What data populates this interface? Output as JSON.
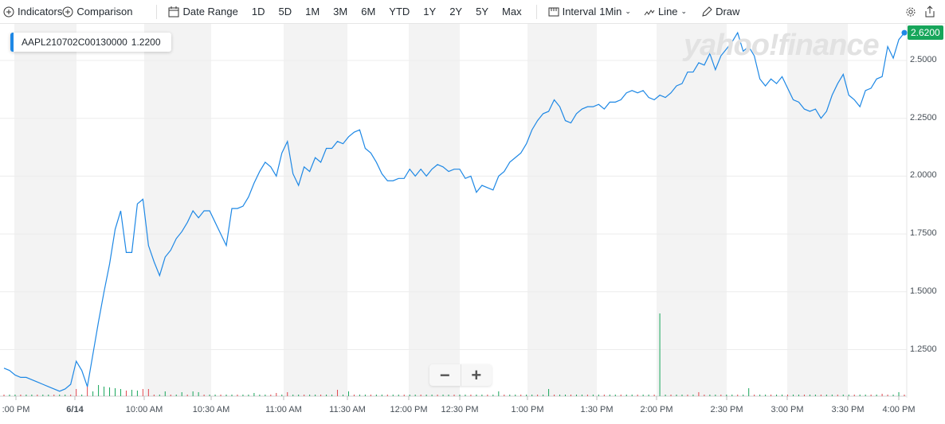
{
  "toolbar": {
    "indicators": "Indicators",
    "comparison": "Comparison",
    "date_range": "Date Range",
    "ranges": [
      "1D",
      "5D",
      "1M",
      "3M",
      "6M",
      "YTD",
      "1Y",
      "2Y",
      "5Y",
      "Max"
    ],
    "interval_label": "Interval",
    "interval_value": "1Min",
    "chart_type": "Line",
    "draw": "Draw"
  },
  "legend": {
    "symbol": "AAPL210702C00130000",
    "value": "1.2200"
  },
  "watermark": "yahoo!finance",
  "last_price": "2.6200",
  "zoom": {
    "minus": "−",
    "plus": "+"
  },
  "colors": {
    "line": "#1e88e5",
    "up": "#17a65b",
    "down": "#e0464e",
    "band": "#f3f3f3",
    "last": "#17a65b"
  },
  "chart_data": {
    "type": "line",
    "title": "AAPL210702C00130000",
    "ylim": [
      1.03,
      2.66
    ],
    "y_ticks": [
      "2.5000",
      "2.2500",
      "2.0000",
      "1.7500",
      "1.5000",
      "1.2500"
    ],
    "y_tick_values": [
      2.5,
      2.25,
      2.0,
      1.75,
      1.5,
      1.25
    ],
    "x_ticks": [
      ":00 PM",
      "6/14",
      "10:00 AM",
      "10:30 AM",
      "11:00 AM",
      "11:30 AM",
      "12:00 PM",
      "12:30 PM",
      "1:00 PM",
      "1:30 PM",
      "2:00 PM",
      "2:30 PM",
      "3:00 PM",
      "3:30 PM",
      "4:00 PM"
    ],
    "values": [
      1.17,
      1.16,
      1.14,
      1.13,
      1.13,
      1.12,
      1.11,
      1.1,
      1.09,
      1.08,
      1.07,
      1.08,
      1.1,
      1.2,
      1.16,
      1.09,
      1.23,
      1.37,
      1.5,
      1.62,
      1.77,
      1.85,
      1.67,
      1.67,
      1.88,
      1.9,
      1.7,
      1.63,
      1.57,
      1.65,
      1.68,
      1.73,
      1.76,
      1.8,
      1.85,
      1.82,
      1.85,
      1.85,
      1.8,
      1.75,
      1.7,
      1.86,
      1.86,
      1.87,
      1.91,
      1.97,
      2.02,
      2.06,
      2.04,
      2.0,
      2.1,
      2.15,
      2.01,
      1.96,
      2.04,
      2.02,
      2.08,
      2.06,
      2.12,
      2.12,
      2.15,
      2.14,
      2.17,
      2.19,
      2.2,
      2.12,
      2.1,
      2.06,
      2.01,
      1.98,
      1.98,
      1.99,
      1.99,
      2.03,
      2.0,
      2.03,
      2.0,
      2.03,
      2.05,
      2.04,
      2.02,
      2.03,
      2.03,
      1.99,
      2.0,
      1.93,
      1.96,
      1.95,
      1.94,
      2.0,
      2.02,
      2.06,
      2.08,
      2.1,
      2.14,
      2.2,
      2.24,
      2.27,
      2.28,
      2.33,
      2.3,
      2.24,
      2.23,
      2.27,
      2.29,
      2.3,
      2.3,
      2.31,
      2.29,
      2.32,
      2.32,
      2.33,
      2.36,
      2.37,
      2.36,
      2.37,
      2.34,
      2.33,
      2.35,
      2.34,
      2.36,
      2.39,
      2.4,
      2.45,
      2.45,
      2.49,
      2.48,
      2.53,
      2.46,
      2.52,
      2.55,
      2.58,
      2.62,
      2.54,
      2.56,
      2.52,
      2.42,
      2.39,
      2.42,
      2.4,
      2.43,
      2.38,
      2.33,
      2.32,
      2.29,
      2.28,
      2.29,
      2.25,
      2.28,
      2.35,
      2.4,
      2.44,
      2.35,
      2.33,
      2.3,
      2.37,
      2.38,
      2.42,
      2.43,
      2.56,
      2.51,
      2.59,
      2.62
    ],
    "volume_default": 2,
    "volume_spikes": [
      {
        "i": 13,
        "v": 9,
        "dir": "down"
      },
      {
        "i": 15,
        "v": 13,
        "dir": "down"
      },
      {
        "i": 16,
        "v": 6,
        "dir": "up"
      },
      {
        "i": 17,
        "v": 14,
        "dir": "up"
      },
      {
        "i": 18,
        "v": 12,
        "dir": "up"
      },
      {
        "i": 19,
        "v": 11,
        "dir": "up"
      },
      {
        "i": 20,
        "v": 10,
        "dir": "up"
      },
      {
        "i": 21,
        "v": 9,
        "dir": "up"
      },
      {
        "i": 22,
        "v": 7,
        "dir": "down"
      },
      {
        "i": 23,
        "v": 8,
        "dir": "up"
      },
      {
        "i": 24,
        "v": 7,
        "dir": "up"
      },
      {
        "i": 25,
        "v": 9,
        "dir": "down"
      },
      {
        "i": 26,
        "v": 9,
        "dir": "down"
      },
      {
        "i": 29,
        "v": 6,
        "dir": "up"
      },
      {
        "i": 32,
        "v": 5,
        "dir": "up"
      },
      {
        "i": 34,
        "v": 6,
        "dir": "up"
      },
      {
        "i": 35,
        "v": 5,
        "dir": "up"
      },
      {
        "i": 45,
        "v": 4,
        "dir": "up"
      },
      {
        "i": 49,
        "v": 4,
        "dir": "down"
      },
      {
        "i": 51,
        "v": 5,
        "dir": "down"
      },
      {
        "i": 60,
        "v": 8,
        "dir": "down"
      },
      {
        "i": 62,
        "v": 6,
        "dir": "up"
      },
      {
        "i": 89,
        "v": 6,
        "dir": "up"
      },
      {
        "i": 98,
        "v": 9,
        "dir": "up"
      },
      {
        "i": 118,
        "v": 104,
        "dir": "up"
      },
      {
        "i": 125,
        "v": 5,
        "dir": "down"
      },
      {
        "i": 134,
        "v": 10,
        "dir": "up"
      },
      {
        "i": 158,
        "v": 3,
        "dir": "down"
      },
      {
        "i": 161,
        "v": 5,
        "dir": "up"
      }
    ]
  }
}
